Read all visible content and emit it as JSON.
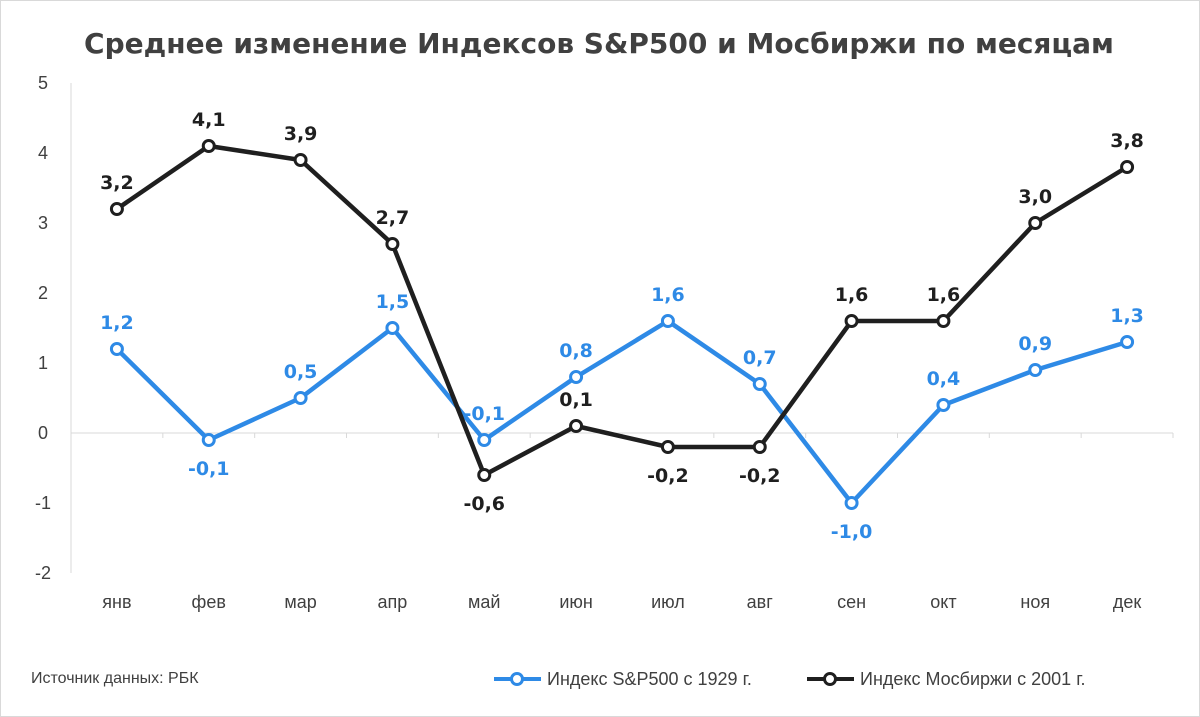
{
  "chart_data": {
    "type": "line",
    "title": "Среднее изменение Индексов S&P500 и Мосбиржи по месяцам",
    "categories": [
      "янв",
      "фев",
      "мар",
      "апр",
      "май",
      "июн",
      "июл",
      "авг",
      "сен",
      "окт",
      "ноя",
      "дек"
    ],
    "ylim": [
      -2,
      5
    ],
    "yticks": [
      "5",
      "4",
      "3",
      "2",
      "1",
      "0",
      "-1",
      "-2"
    ],
    "grid": false,
    "legend_position": "bottom-right",
    "series": [
      {
        "name": "Индекс S&P500 с 1929 г.",
        "color": "#2e8ae6",
        "values": [
          1.2,
          -0.1,
          0.5,
          1.5,
          -0.1,
          0.8,
          1.6,
          0.7,
          -1.0,
          0.4,
          0.9,
          1.3
        ],
        "labels": [
          "1,2",
          "-0,1",
          "0,5",
          "1,5",
          "-0,1",
          "0,8",
          "1,6",
          "0,7",
          "-1,0",
          "0,4",
          "0,9",
          "1,3"
        ],
        "label_pos": [
          "above",
          "below",
          "above",
          "above",
          "above",
          "above",
          "above",
          "above",
          "below",
          "above",
          "above",
          "above"
        ]
      },
      {
        "name": "Индекс Мосбиржи с 2001 г.",
        "color": "#1f1f1f",
        "values": [
          3.2,
          4.1,
          3.9,
          2.7,
          -0.6,
          0.1,
          -0.2,
          -0.2,
          1.6,
          1.6,
          3.0,
          3.8
        ],
        "labels": [
          "3,2",
          "4,1",
          "3,9",
          "2,7",
          "-0,6",
          "0,1",
          "-0,2",
          "-0,2",
          "1,6",
          "1,6",
          "3,0",
          "3,8"
        ],
        "label_pos": [
          "above",
          "above",
          "above",
          "above",
          "below",
          "above",
          "below",
          "below",
          "above",
          "above",
          "above",
          "above"
        ]
      }
    ]
  },
  "source_note": "Источник данных: РБК"
}
